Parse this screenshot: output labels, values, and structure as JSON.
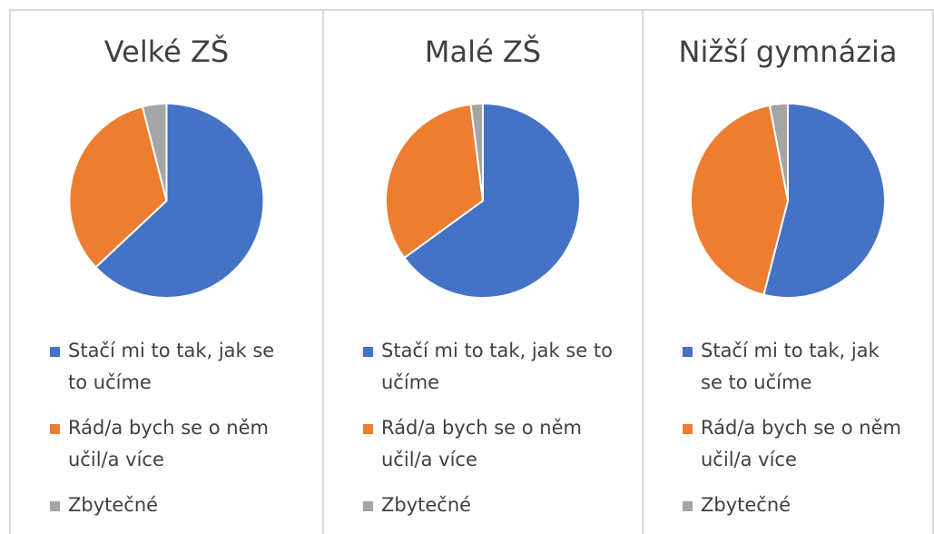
{
  "chart_data": [
    {
      "type": "pie",
      "title": "Velké ZŠ",
      "categories": [
        "Stačí mi to tak, jak se to učíme",
        "Rád/a bych se o něm učil/a více",
        "Zbytečné"
      ],
      "values": [
        63,
        33,
        4
      ],
      "colors": [
        "#4472c4",
        "#ed7d31",
        "#a5a5a5"
      ]
    },
    {
      "type": "pie",
      "title": "Malé ZŠ",
      "categories": [
        "Stačí mi to tak, jak se to učíme",
        "Rád/a bych se o něm učil/a více",
        "Zbytečné"
      ],
      "values": [
        65,
        33,
        2
      ],
      "colors": [
        "#4472c4",
        "#ed7d31",
        "#a5a5a5"
      ]
    },
    {
      "type": "pie",
      "title": "Nižší gymnázia",
      "categories": [
        "Stačí mi to tak, jak se to učíme",
        "Rád/a bych se o něm učil/a více",
        "Zbytečné"
      ],
      "values": [
        54,
        43,
        3
      ],
      "colors": [
        "#4472c4",
        "#ed7d31",
        "#a5a5a5"
      ]
    }
  ]
}
